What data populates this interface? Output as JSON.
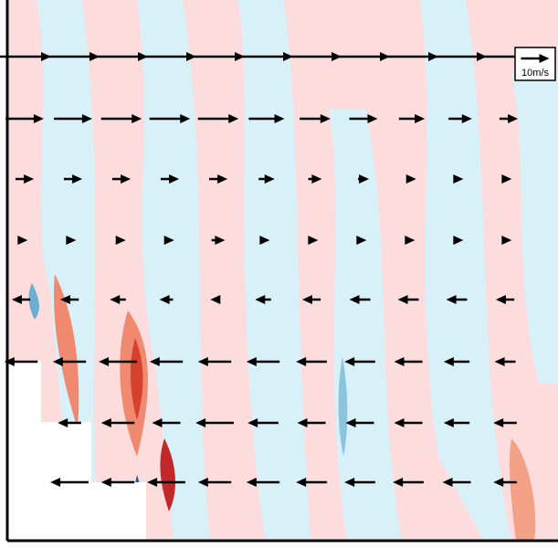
{
  "chart_data": {
    "type": "quiver",
    "key_label": "10m/s",
    "key_value": 10,
    "color": "#000000",
    "rows": [
      {
        "u": [
          20,
          20,
          20,
          20,
          20,
          20,
          20,
          20,
          20,
          20,
          20
        ]
      },
      {
        "u": [
          14,
          14,
          15,
          15,
          15,
          13,
          11,
          10,
          9,
          8,
          6
        ]
      },
      {
        "u": [
          6,
          6,
          6,
          6,
          6,
          5,
          4,
          3,
          2,
          1,
          1
        ]
      },
      {
        "u": [
          1,
          1,
          2,
          2,
          4,
          1,
          1,
          1,
          1,
          1,
          1
        ]
      },
      {
        "u": [
          -6,
          -6,
          -5,
          -4,
          -2,
          -5,
          -6,
          -7,
          -7,
          -7,
          -6
        ]
      },
      {
        "u": [
          -12,
          -12,
          -14,
          -12,
          -12,
          -12,
          -11,
          -11,
          -10,
          -9,
          -7
        ]
      },
      {
        "u": [
          null,
          -8,
          -12,
          -10,
          -14,
          -11,
          -10,
          -10,
          -10,
          -9,
          -8
        ]
      },
      {
        "u": [
          null,
          -14,
          -12,
          -14,
          -12,
          -12,
          -11,
          -11,
          -11,
          -10,
          -8
        ]
      }
    ]
  }
}
